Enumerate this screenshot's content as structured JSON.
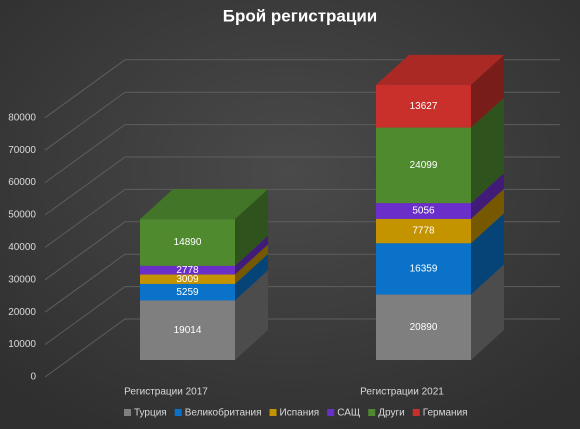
{
  "chart_data": {
    "type": "bar",
    "stacked": true,
    "title": "Брой регистрации",
    "categories": [
      "Регистрации 2017",
      "Регистрации 2021"
    ],
    "series": [
      {
        "name": "Турция",
        "color": "#7f7f7f",
        "values": [
          19014,
          20890
        ]
      },
      {
        "name": "Великобритания",
        "color": "#0a72c8",
        "values": [
          5259,
          16359
        ]
      },
      {
        "name": "Испания",
        "color": "#c49300",
        "values": [
          3009,
          7778
        ]
      },
      {
        "name": "САЩ",
        "color": "#6a2fc8",
        "values": [
          2778,
          5056
        ]
      },
      {
        "name": "Други",
        "color": "#4f8a2f",
        "values": [
          14890,
          24099
        ]
      },
      {
        "name": "Германия",
        "color": "#c9302c",
        "values": [
          null,
          13627
        ]
      }
    ],
    "ylim": [
      0,
      90000
    ],
    "yticks": [
      0,
      10000,
      20000,
      30000,
      40000,
      50000,
      60000,
      70000,
      80000
    ],
    "grid": true,
    "legend": "bottom"
  }
}
